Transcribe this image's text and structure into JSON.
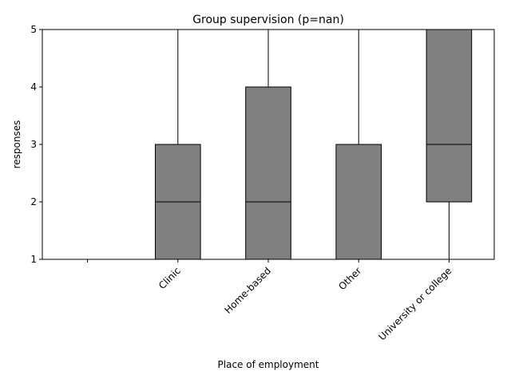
{
  "chart_data": {
    "type": "box",
    "title": "Group supervision (p=nan)",
    "xlabel": "Place of employment",
    "ylabel": "responses",
    "ylim": [
      1,
      5
    ],
    "yticks": [
      "1",
      "2",
      "3",
      "4",
      "5"
    ],
    "grid": false,
    "categories": [
      "",
      "Clinic",
      "Home-based",
      "Other",
      "University or college"
    ],
    "boxes": [
      null,
      {
        "whisker_low": 1,
        "q1": 1,
        "median": 2,
        "q3": 3,
        "whisker_high": 5
      },
      {
        "whisker_low": 1,
        "q1": 1,
        "median": 2,
        "q3": 4,
        "whisker_high": 5
      },
      {
        "whisker_low": 1,
        "q1": 1,
        "median": 3,
        "q3": 3,
        "whisker_high": 5
      },
      {
        "whisker_low": 1,
        "q1": 2,
        "median": 3,
        "q3": 5,
        "whisker_high": 5
      }
    ],
    "colors": {
      "box_fill": "#808080",
      "line": "#000000"
    }
  }
}
